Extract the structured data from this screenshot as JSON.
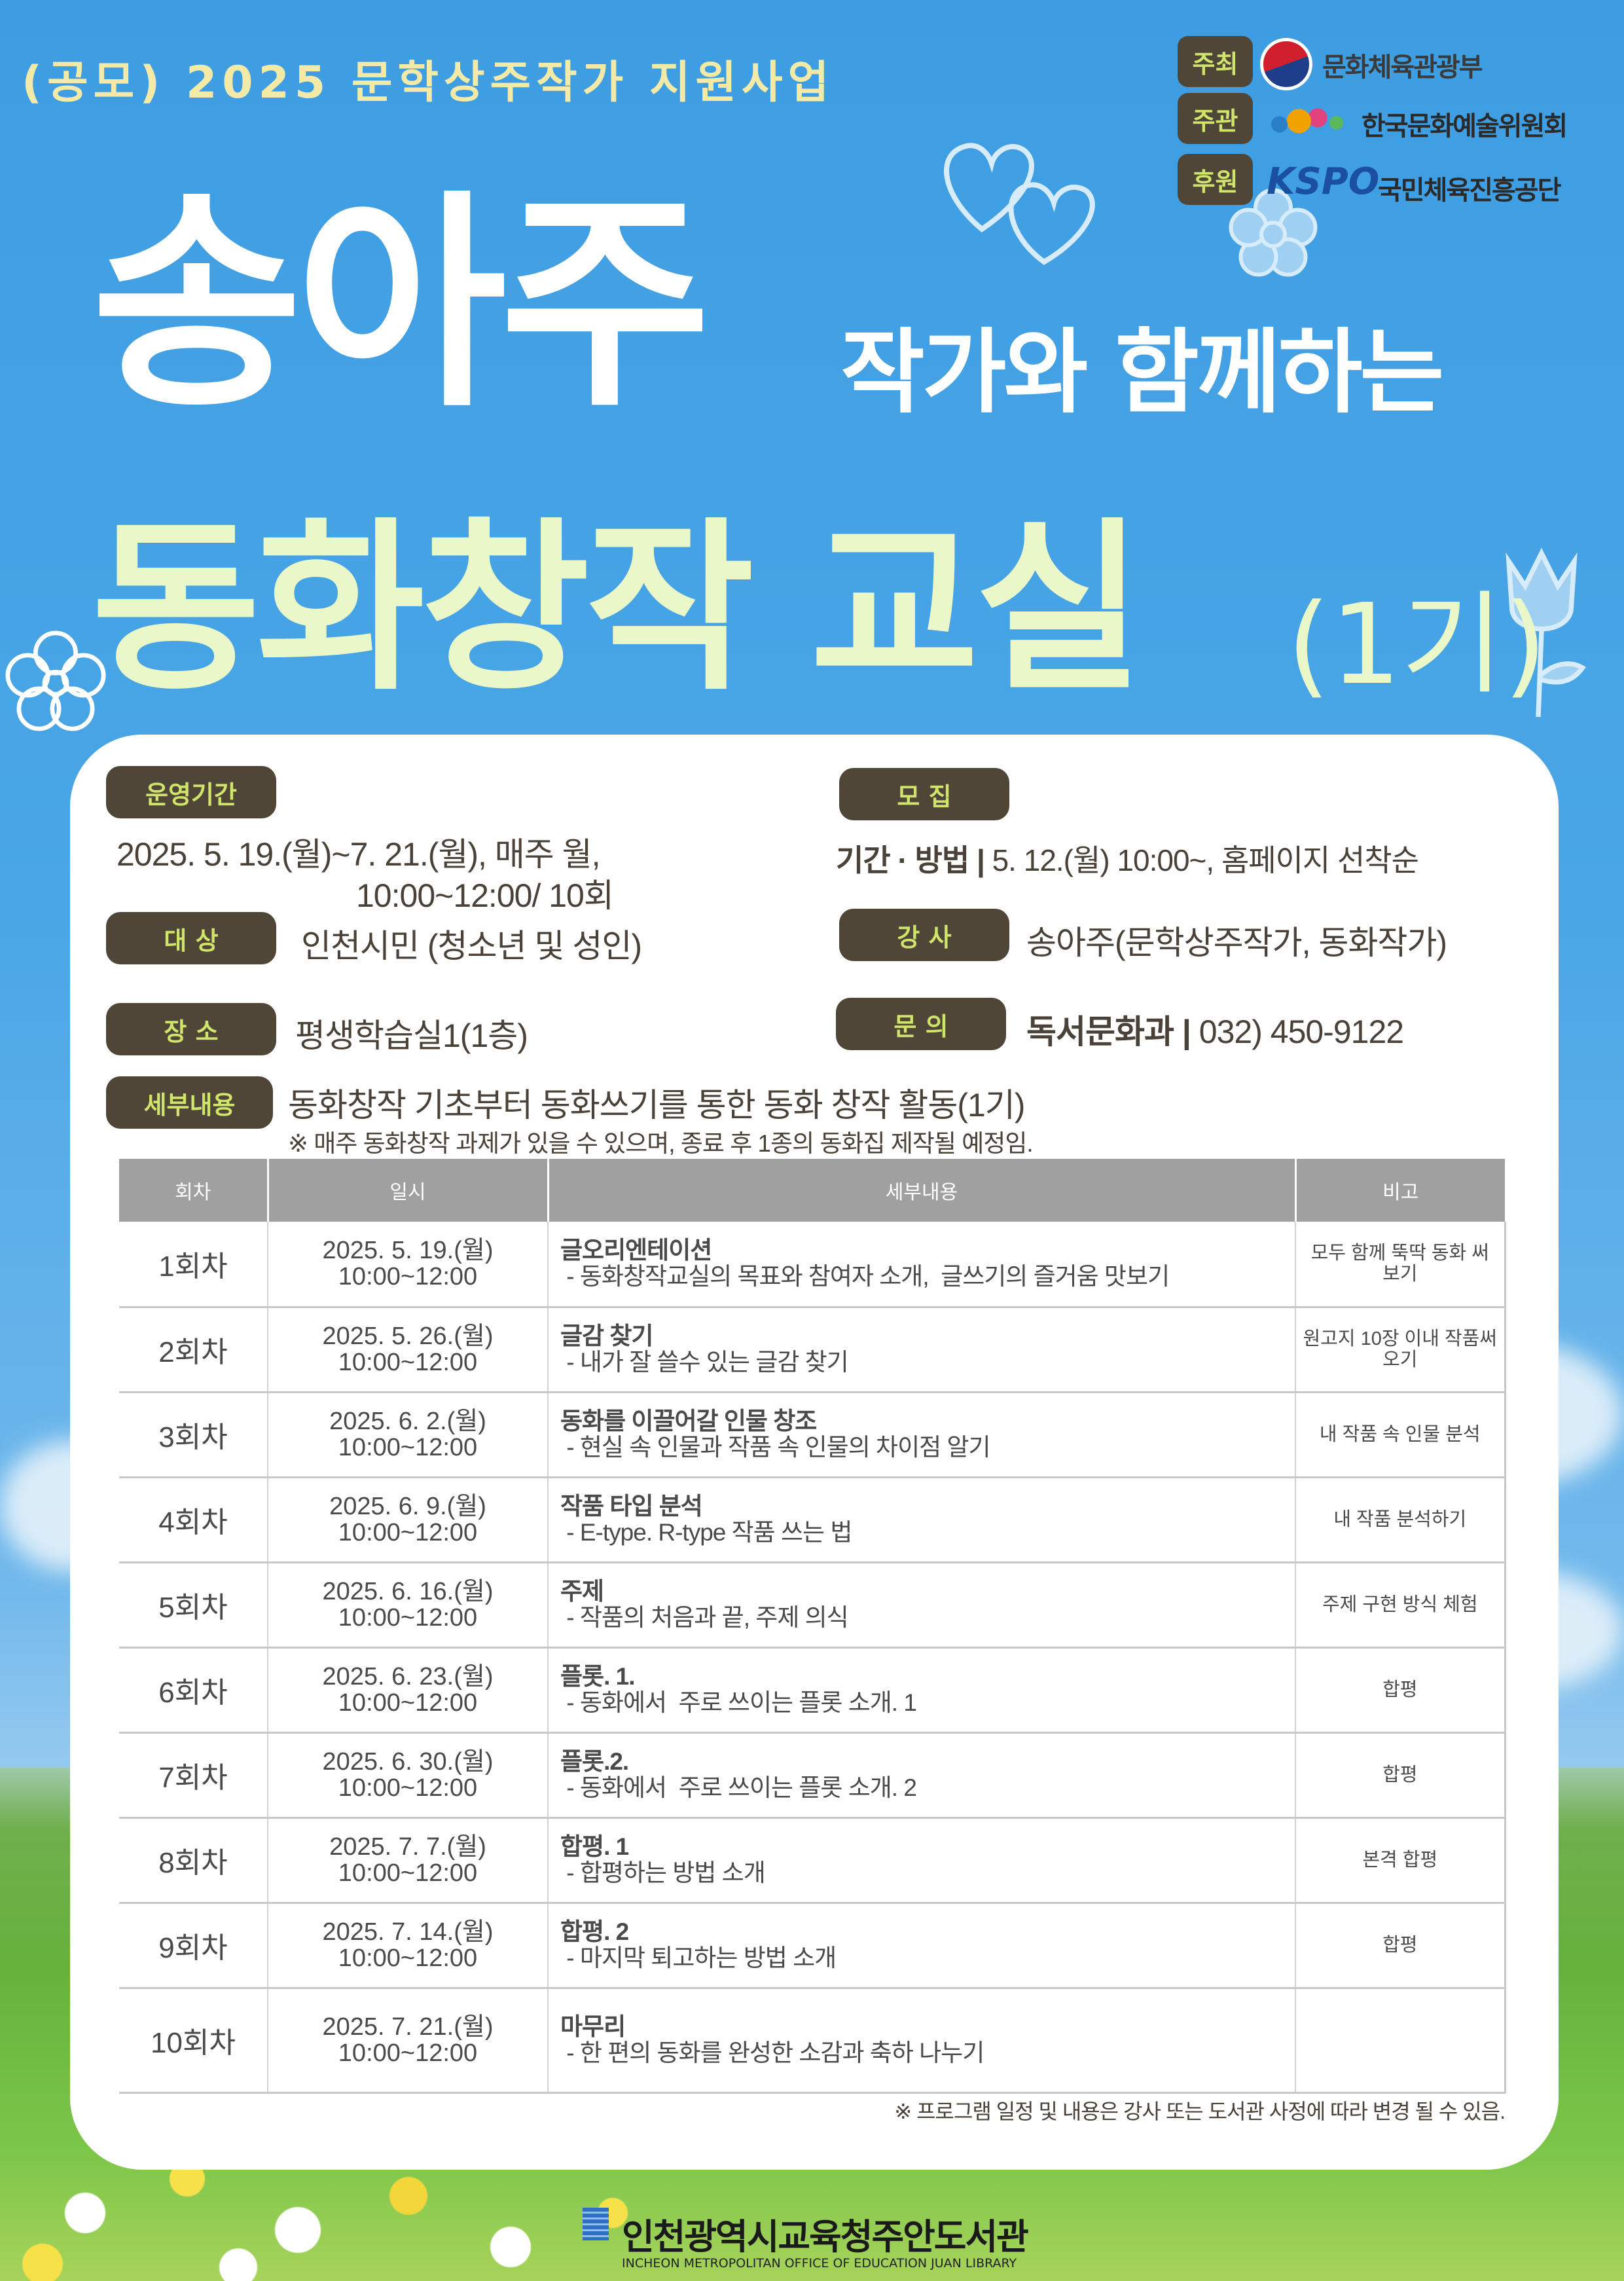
{
  "header": {
    "subtitle": "(공모) 2025 문학상주작가 지원사업",
    "title_name": "송아주",
    "title_rest": "작가와 함께하는",
    "title_main": "동화창작 교실",
    "title_cohort": "(1기)"
  },
  "sponsors": [
    {
      "role": "주최",
      "org": "문화체육관광부"
    },
    {
      "role": "주관",
      "org": "한국문화예술위원회"
    },
    {
      "role": "후원",
      "org": "국민체육진흥공단",
      "mark": "KSPO"
    }
  ],
  "info": {
    "period": {
      "label": "운영기간",
      "line1": "2025. 5. 19.(월)~7. 21.(월),  매주 월,",
      "line2": "10:00~12:00/ 10회"
    },
    "target": {
      "label": "대 상",
      "value": "인천시민 (청소년 및 성인)"
    },
    "place": {
      "label": "장 소",
      "value": "평생학습실1(1층)"
    },
    "recruit": {
      "label": "모 집",
      "key": "기간 · 방법 |",
      "value": "5. 12.(월) 10:00~, 홈페이지 선착순"
    },
    "lecturer": {
      "label": "강 사",
      "value": "송아주(문학상주작가, 동화작가)"
    },
    "contact": {
      "label": "문 의",
      "key": "독서문화과 |",
      "value": "032) 450-9122"
    },
    "detail": {
      "label": "세부내용",
      "value": "동화창작 기초부터 동화쓰기를 통한 동화 창작 활동(1기)",
      "note": "※ 매주 동화창작 과제가 있을 수 있으며, 종료 후 1종의 동화집 제작될 예정임."
    }
  },
  "table": {
    "headers": [
      "회차",
      "일시",
      "세부내용",
      "비고"
    ],
    "rows": [
      {
        "round": "1회차",
        "date": "2025. 5. 19.(월)",
        "time": "10:00~12:00",
        "title": "글오리엔테이션",
        "desc": " - 동화창작교실의 목표와 참여자 소개,  글쓰기의 즐거움 맛보기",
        "note": "모두 함께 뚝딱 동화 써보기"
      },
      {
        "round": "2회차",
        "date": "2025. 5. 26.(월)",
        "time": "10:00~12:00",
        "title": "글감 찾기",
        "desc": " - 내가 잘 쓸수 있는 글감 찾기",
        "note": "원고지 10장 이내 작품써오기"
      },
      {
        "round": "3회차",
        "date": "2025. 6. 2.(월)",
        "time": "10:00~12:00",
        "title": "동화를 이끌어갈 인물 창조",
        "desc": " - 현실 속 인물과 작품 속 인물의 차이점 알기",
        "note": "내 작품 속 인물 분석"
      },
      {
        "round": "4회차",
        "date": "2025. 6. 9.(월)",
        "time": "10:00~12:00",
        "title": "작품 타입 분석",
        "desc": " - E-type. R-type 작품 쓰는 법",
        "note": "내 작품 분석하기"
      },
      {
        "round": "5회차",
        "date": "2025. 6. 16.(월)",
        "time": "10:00~12:00",
        "title": "주제",
        "desc": " - 작품의 처음과 끝, 주제 의식",
        "note": "주제 구현 방식 체험"
      },
      {
        "round": "6회차",
        "date": "2025. 6. 23.(월)",
        "time": "10:00~12:00",
        "title": "플롯. 1.",
        "desc": " - 동화에서  주로 쓰이는 플롯 소개. 1",
        "note": "합평"
      },
      {
        "round": "7회차",
        "date": "2025. 6. 30.(월)",
        "time": "10:00~12:00",
        "title": "플롯.2.",
        "desc": " - 동화에서  주로 쓰이는 플롯 소개. 2",
        "note": "합평"
      },
      {
        "round": "8회차",
        "date": "2025.  7. 7.(월)",
        "time": "10:00~12:00",
        "title": "합평. 1",
        "desc": " - 합평하는 방법 소개",
        "note": "본격 합평"
      },
      {
        "round": "9회차",
        "date": "2025.  7. 14.(월)",
        "time": "10:00~12:00",
        "title": "합평. 2",
        "desc": " - 마지막 퇴고하는 방법 소개",
        "note": "합평"
      },
      {
        "round": "10회차",
        "date": "2025.  7. 21.(월)",
        "time": "10:00~12:00",
        "title": "마무리",
        "desc": " - 한 편의 동화를 완성한 소감과 축하 나누기",
        "note": ""
      }
    ]
  },
  "footnote": "※ 프로그램 일정 및 내용은 강사 또는 도서관 사정에 따라 변경 될 수 있음.",
  "footer": {
    "org": "인천광역시교육청주안도서관",
    "org_en": "INCHEON METROPOLITAN OFFICE OF EDUCATION JUAN LIBRARY"
  },
  "colors": {
    "sky": "#4aa6e6",
    "label_bg": "#4f4637",
    "label_text": "#cfe46a",
    "title_green": "#eaf8c9",
    "subtitle": "#f4eaa8",
    "table_header": "#a0a0a0"
  }
}
